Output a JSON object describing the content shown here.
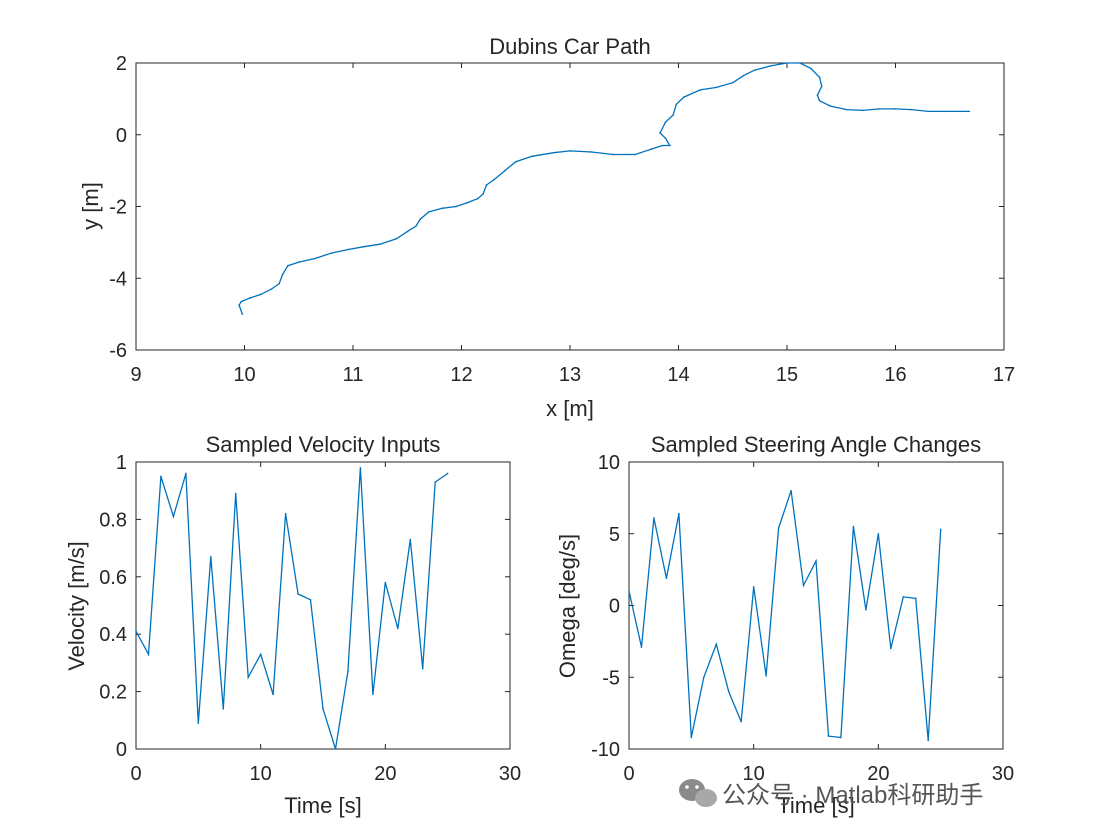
{
  "chart_data": [
    {
      "type": "line",
      "title": "Dubins Car Path",
      "xlabel": "x [m]",
      "ylabel": "y [m]",
      "xlim": [
        9,
        17
      ],
      "ylim": [
        -6,
        2
      ],
      "xticks": [
        9,
        10,
        11,
        12,
        13,
        14,
        15,
        16,
        17
      ],
      "yticks": [
        -6,
        -4,
        -2,
        0,
        2
      ],
      "x": [
        9.98,
        9.95,
        9.97,
        10.05,
        10.15,
        10.25,
        10.32,
        10.35,
        10.4,
        10.5,
        10.65,
        10.8,
        10.95,
        11.1,
        11.25,
        11.4,
        11.5,
        11.58,
        11.62,
        11.7,
        11.82,
        11.95,
        12.05,
        12.15,
        12.2,
        12.23,
        12.3,
        12.4,
        12.5,
        12.65,
        12.85,
        13.0,
        13.2,
        13.4,
        13.6,
        13.75,
        13.85,
        13.92,
        13.88,
        13.83,
        13.88,
        13.95,
        13.98,
        14.05,
        14.2,
        14.35,
        14.5,
        14.6,
        14.7,
        14.85,
        15.0,
        15.12,
        15.22,
        15.3,
        15.32,
        15.28,
        15.3,
        15.4,
        15.55,
        15.7,
        15.85,
        16.0,
        16.15,
        16.3,
        16.45,
        16.6,
        16.68
      ],
      "y": [
        -5.0,
        -4.75,
        -4.65,
        -4.55,
        -4.45,
        -4.3,
        -4.15,
        -3.9,
        -3.65,
        -3.55,
        -3.45,
        -3.3,
        -3.2,
        -3.12,
        -3.05,
        -2.9,
        -2.7,
        -2.55,
        -2.35,
        -2.15,
        -2.05,
        -2.0,
        -1.9,
        -1.78,
        -1.65,
        -1.4,
        -1.25,
        -1.0,
        -0.75,
        -0.6,
        -0.5,
        -0.45,
        -0.48,
        -0.55,
        -0.55,
        -0.4,
        -0.3,
        -0.3,
        -0.1,
        0.05,
        0.35,
        0.55,
        0.85,
        1.05,
        1.25,
        1.32,
        1.45,
        1.65,
        1.8,
        1.92,
        2.0,
        2.0,
        1.85,
        1.6,
        1.35,
        1.1,
        0.95,
        0.8,
        0.7,
        0.68,
        0.72,
        0.72,
        0.7,
        0.65,
        0.65,
        0.65,
        0.65
      ]
    },
    {
      "type": "line",
      "title": "Sampled Velocity Inputs",
      "xlabel": "Time [s]",
      "ylabel": "Velocity [m/s]",
      "xlim": [
        0,
        30
      ],
      "ylim": [
        0,
        1
      ],
      "xticks": [
        0,
        10,
        20,
        30
      ],
      "yticks": [
        0,
        0.2,
        0.4,
        0.6,
        0.8,
        1
      ],
      "ytick_labels": [
        "0",
        "0.2",
        "0.4",
        "0.6",
        "0.8",
        "1"
      ],
      "x": [
        0,
        1,
        2,
        3,
        4,
        5,
        6,
        7,
        8,
        9,
        10,
        11,
        12,
        13,
        14,
        15,
        16,
        17,
        18,
        19,
        20,
        21,
        22,
        23,
        24,
        25
      ],
      "y": [
        0.41,
        0.33,
        0.95,
        0.81,
        0.96,
        0.09,
        0.67,
        0.14,
        0.89,
        0.25,
        0.33,
        0.19,
        0.82,
        0.54,
        0.52,
        0.14,
        0.0,
        0.27,
        0.98,
        0.19,
        0.58,
        0.42,
        0.73,
        0.28,
        0.93,
        0.96
      ]
    },
    {
      "type": "line",
      "title": "Sampled Steering Angle Changes",
      "xlabel": "Time [s]",
      "ylabel": "Omega [deg/s]",
      "xlim": [
        0,
        30
      ],
      "ylim": [
        -10,
        10
      ],
      "xticks": [
        0,
        10,
        20,
        30
      ],
      "yticks": [
        -10,
        -5,
        0,
        5,
        10
      ],
      "x": [
        0,
        1,
        2,
        3,
        4,
        5,
        6,
        7,
        8,
        9,
        10,
        11,
        12,
        13,
        14,
        15,
        16,
        17,
        18,
        19,
        20,
        21,
        22,
        23,
        24,
        25
      ],
      "y": [
        1.0,
        -2.9,
        6.1,
        1.9,
        6.4,
        -9.2,
        -5.0,
        -2.7,
        -6.0,
        -8.1,
        1.3,
        -4.9,
        5.4,
        8.0,
        1.4,
        3.1,
        -9.1,
        -9.2,
        5.5,
        -0.3,
        5.0,
        -3.0,
        0.6,
        0.5,
        -9.4,
        5.3
      ]
    }
  ],
  "watermark": "公众号 · Matlab科研助手",
  "colors": {
    "series": "#0072BD",
    "axis": "#262626"
  }
}
